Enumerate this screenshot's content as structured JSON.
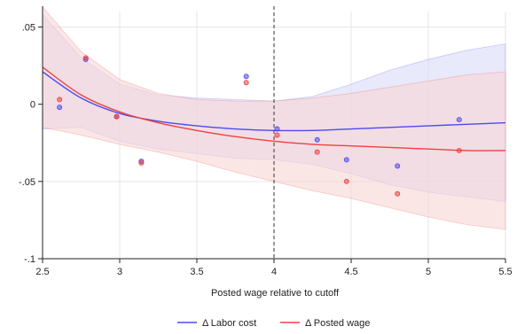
{
  "chart_data": {
    "type": "scatter",
    "xlabel": "Posted wage relative to cutoff",
    "ylabel": "",
    "xlim": [
      2.5,
      5.5
    ],
    "ylim": [
      -0.1,
      0.06
    ],
    "xticks": [
      "2.5",
      "3",
      "3.5",
      "4",
      "4.5",
      "5",
      "5.5"
    ],
    "xtick_values": [
      2.5,
      3,
      3.5,
      4,
      4.5,
      5,
      5.5
    ],
    "yticks": [
      "-.1",
      "-.05",
      "0",
      ".05"
    ],
    "ytick_values": [
      -0.1,
      -0.05,
      0,
      0.05
    ],
    "grid": true,
    "cutoff_line_x": 4.0,
    "legend_position": "bottom",
    "series": [
      {
        "name": "Δ Labor cost",
        "color": "#4b4bf0",
        "band_color": "#d9dbf7",
        "points": [
          [
            2.61,
            -0.002
          ],
          [
            2.78,
            0.029
          ],
          [
            2.98,
            -0.008
          ],
          [
            3.14,
            -0.037
          ],
          [
            3.82,
            0.018
          ],
          [
            4.02,
            -0.016
          ],
          [
            4.28,
            -0.023
          ],
          [
            4.47,
            -0.036
          ],
          [
            4.8,
            -0.04
          ],
          [
            5.2,
            -0.01
          ]
        ],
        "fit": [
          [
            2.5,
            0.021
          ],
          [
            2.75,
            0.004
          ],
          [
            3.0,
            -0.006
          ],
          [
            3.25,
            -0.011
          ],
          [
            3.5,
            -0.014
          ],
          [
            3.75,
            -0.016
          ],
          [
            4.0,
            -0.017
          ],
          [
            4.25,
            -0.017
          ],
          [
            4.5,
            -0.016
          ],
          [
            4.75,
            -0.015
          ],
          [
            5.0,
            -0.014
          ],
          [
            5.25,
            -0.013
          ],
          [
            5.5,
            -0.012
          ]
        ],
        "ci_upper": [
          [
            2.5,
            0.058
          ],
          [
            2.75,
            0.03
          ],
          [
            3.0,
            0.013
          ],
          [
            3.25,
            0.006
          ],
          [
            3.5,
            0.004
          ],
          [
            3.75,
            0.003
          ],
          [
            4.0,
            0.002
          ],
          [
            4.25,
            0.005
          ],
          [
            4.5,
            0.013
          ],
          [
            4.75,
            0.022
          ],
          [
            5.0,
            0.029
          ],
          [
            5.25,
            0.035
          ],
          [
            5.5,
            0.039
          ]
        ],
        "ci_lower": [
          [
            2.5,
            -0.016
          ],
          [
            2.75,
            -0.015
          ],
          [
            3.0,
            -0.024
          ],
          [
            3.25,
            -0.029
          ],
          [
            3.5,
            -0.032
          ],
          [
            3.75,
            -0.035
          ],
          [
            4.0,
            -0.036
          ],
          [
            4.25,
            -0.039
          ],
          [
            4.5,
            -0.045
          ],
          [
            4.75,
            -0.052
          ],
          [
            5.0,
            -0.057
          ],
          [
            5.25,
            -0.06
          ],
          [
            5.5,
            -0.063
          ]
        ]
      },
      {
        "name": "Δ Posted wage",
        "color": "#f04040",
        "band_color": "#f8d6d6",
        "points": [
          [
            2.61,
            0.003
          ],
          [
            2.78,
            0.03
          ],
          [
            2.98,
            -0.008
          ],
          [
            3.14,
            -0.038
          ],
          [
            3.82,
            0.014
          ],
          [
            4.02,
            -0.02
          ],
          [
            4.28,
            -0.031
          ],
          [
            4.47,
            -0.05
          ],
          [
            4.8,
            -0.058
          ],
          [
            5.2,
            -0.03
          ]
        ],
        "fit": [
          [
            2.5,
            0.024
          ],
          [
            2.75,
            0.006
          ],
          [
            3.0,
            -0.005
          ],
          [
            3.25,
            -0.012
          ],
          [
            3.5,
            -0.017
          ],
          [
            3.75,
            -0.021
          ],
          [
            4.0,
            -0.024
          ],
          [
            4.25,
            -0.026
          ],
          [
            4.5,
            -0.027
          ],
          [
            4.75,
            -0.028
          ],
          [
            5.0,
            -0.029
          ],
          [
            5.25,
            -0.03
          ],
          [
            5.5,
            -0.03
          ]
        ],
        "ci_upper": [
          [
            2.5,
            0.063
          ],
          [
            2.75,
            0.034
          ],
          [
            3.0,
            0.016
          ],
          [
            3.25,
            0.007
          ],
          [
            3.5,
            0.003
          ],
          [
            3.75,
            0.002
          ],
          [
            4.0,
            0.002
          ],
          [
            4.25,
            0.004
          ],
          [
            4.5,
            0.007
          ],
          [
            4.75,
            0.011
          ],
          [
            5.0,
            0.015
          ],
          [
            5.25,
            0.019
          ],
          [
            5.5,
            0.021
          ]
        ],
        "ci_lower": [
          [
            2.5,
            -0.015
          ],
          [
            2.75,
            -0.02
          ],
          [
            3.0,
            -0.026
          ],
          [
            3.25,
            -0.031
          ],
          [
            3.5,
            -0.037
          ],
          [
            3.75,
            -0.044
          ],
          [
            4.0,
            -0.05
          ],
          [
            4.25,
            -0.056
          ],
          [
            4.5,
            -0.061
          ],
          [
            4.75,
            -0.067
          ],
          [
            5.0,
            -0.073
          ],
          [
            5.25,
            -0.078
          ],
          [
            5.5,
            -0.081
          ]
        ]
      }
    ]
  },
  "colors": {
    "grid": "#e6e6e6",
    "axis": "#222222",
    "cutoff": "#333333",
    "overlap": "#d9bfdb"
  }
}
